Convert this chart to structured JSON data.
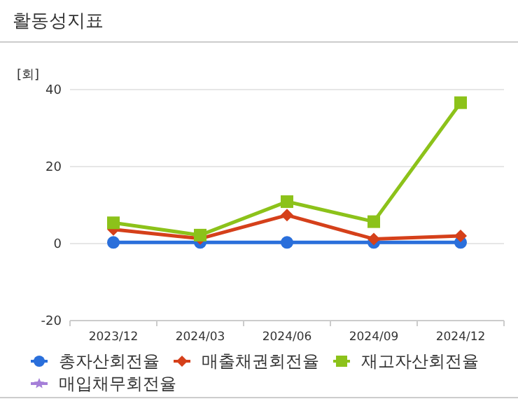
{
  "chart_data": {
    "type": "line",
    "title": "활동성지표",
    "ylabel": "[회]",
    "categories": [
      "2023/12",
      "2024/03",
      "2024/06",
      "2024/09",
      "2024/12"
    ],
    "ylim": [
      -20,
      40
    ],
    "yticks": [
      -20,
      0,
      20,
      40
    ],
    "grid": "y",
    "legend": "bottom",
    "series": [
      {
        "name": "총자산회전율",
        "color": "#2a6fdb",
        "marker": "circle",
        "values": [
          0.3,
          0.3,
          0.3,
          0.3,
          0.3
        ]
      },
      {
        "name": "매출채권회전율",
        "color": "#d5401a",
        "marker": "diamond",
        "values": [
          3.7,
          1.3,
          7.4,
          1.2,
          2.0
        ]
      },
      {
        "name": "재고자산회전율",
        "color": "#8cc21a",
        "marker": "square",
        "values": [
          5.4,
          2.2,
          10.9,
          5.7,
          36.6
        ]
      },
      {
        "name": "매입채무회전율",
        "color": "#a57fd8",
        "marker": "star",
        "values": [
          null,
          null,
          null,
          null,
          null
        ]
      }
    ]
  }
}
